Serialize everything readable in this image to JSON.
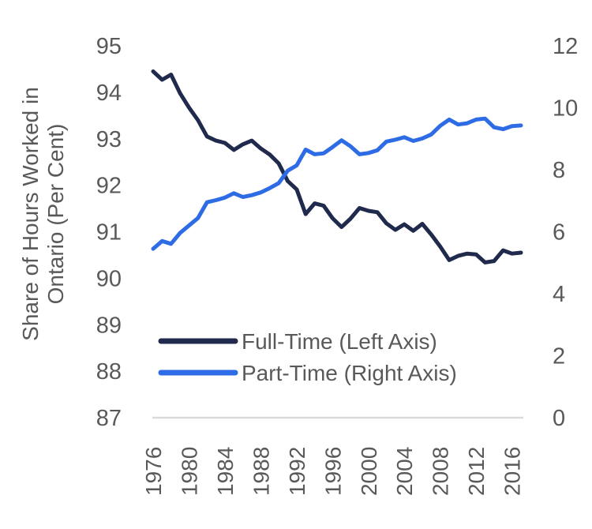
{
  "figure": {
    "background": "#ffffff",
    "text_color": "#595959",
    "baseline_color": "#d9d9d9"
  },
  "chart_data": {
    "type": "line",
    "title": "",
    "x_years": [
      1976,
      1977,
      1978,
      1979,
      1980,
      1981,
      1982,
      1983,
      1984,
      1985,
      1986,
      1987,
      1988,
      1989,
      1990,
      1991,
      1992,
      1993,
      1994,
      1995,
      1996,
      1997,
      1998,
      1999,
      2000,
      2001,
      2002,
      2003,
      2004,
      2005,
      2006,
      2007,
      2008,
      2009,
      2010,
      2011,
      2012,
      2013,
      2014,
      2015,
      2016,
      2017
    ],
    "series": [
      {
        "name": "Full-Time (Left Axis)",
        "axis": "left",
        "color": "#1f2a4c",
        "values": [
          94.45,
          94.27,
          94.38,
          93.98,
          93.67,
          93.4,
          93.05,
          92.96,
          92.91,
          92.76,
          92.88,
          92.96,
          92.79,
          92.66,
          92.47,
          92.09,
          91.91,
          91.38,
          91.61,
          91.56,
          91.29,
          91.1,
          91.28,
          91.51,
          91.45,
          91.42,
          91.18,
          91.04,
          91.16,
          91.02,
          91.17,
          90.94,
          90.68,
          90.39,
          90.48,
          90.53,
          90.51,
          90.34,
          90.37,
          90.6,
          90.53,
          90.55
        ]
      },
      {
        "name": "Part-Time (Right Axis)",
        "axis": "right",
        "color": "#2d6ce5",
        "values": [
          5.45,
          5.7,
          5.61,
          5.96,
          6.2,
          6.44,
          6.95,
          7.02,
          7.1,
          7.24,
          7.12,
          7.18,
          7.27,
          7.41,
          7.57,
          7.97,
          8.14,
          8.65,
          8.5,
          8.53,
          8.73,
          8.95,
          8.76,
          8.5,
          8.54,
          8.63,
          8.91,
          8.97,
          9.05,
          8.93,
          9.01,
          9.14,
          9.42,
          9.62,
          9.46,
          9.5,
          9.62,
          9.65,
          9.37,
          9.31,
          9.41,
          9.43
        ]
      }
    ],
    "left_axis": {
      "title": "Share of Hours Worked in Ontario (Per Cent)",
      "title_lines": [
        "Share of Hours Worked in",
        "Ontario (Per Cent)"
      ],
      "min": 87,
      "max": 95,
      "tick_step": 1,
      "ticks": [
        95,
        94,
        93,
        92,
        91,
        90,
        89,
        88,
        87
      ]
    },
    "right_axis": {
      "min": 0,
      "max": 12,
      "tick_step": 2,
      "ticks": [
        12,
        10,
        8,
        6,
        4,
        2,
        0
      ]
    },
    "x_axis": {
      "tick_labels": [
        "1976",
        "1980",
        "1984",
        "1988",
        "1992",
        "1996",
        "2000",
        "2004",
        "2008",
        "2012",
        "2016"
      ]
    },
    "legend": {
      "position": "inside-bottom-left",
      "entries": [
        "Full-Time (Left Axis)",
        "Part-Time (Right Axis)"
      ]
    },
    "grid": "baseline-only",
    "ylim_left": [
      87,
      95
    ],
    "ylim_right": [
      0,
      12
    ]
  }
}
